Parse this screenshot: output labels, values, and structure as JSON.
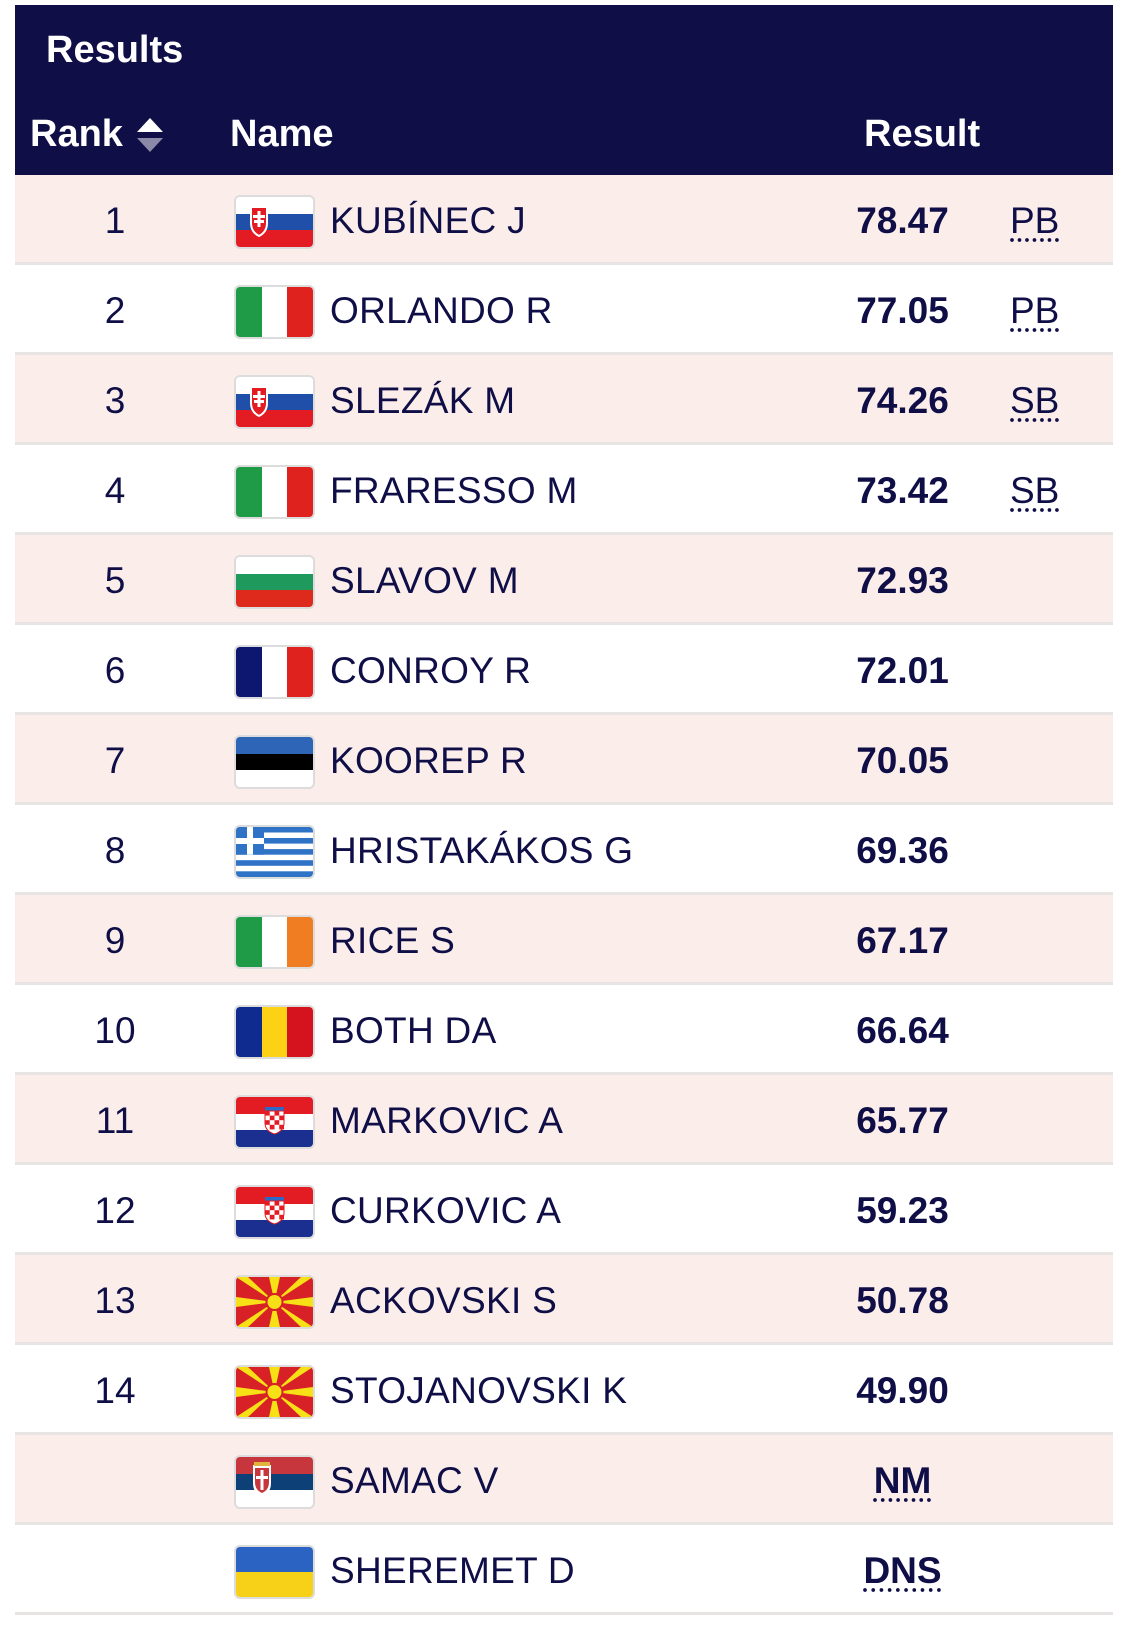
{
  "header": {
    "title": "Results",
    "columns": {
      "rank": "Rank",
      "name": "Name",
      "result": "Result"
    }
  },
  "rows": [
    {
      "rank": "1",
      "flag": "slovakia-flag",
      "name": "KUBÍNEC J",
      "result": "78.47",
      "mark": "PB"
    },
    {
      "rank": "2",
      "flag": "italy-flag",
      "name": "ORLANDO R",
      "result": "77.05",
      "mark": "PB"
    },
    {
      "rank": "3",
      "flag": "slovakia-flag",
      "name": "SLEZÁK M",
      "result": "74.26",
      "mark": "SB"
    },
    {
      "rank": "4",
      "flag": "italy-flag",
      "name": "FRARESSO M",
      "result": "73.42",
      "mark": "SB"
    },
    {
      "rank": "5",
      "flag": "bulgaria-flag",
      "name": "SLAVOV M",
      "result": "72.93",
      "mark": ""
    },
    {
      "rank": "6",
      "flag": "france-flag",
      "name": "CONROY R",
      "result": "72.01",
      "mark": ""
    },
    {
      "rank": "7",
      "flag": "estonia-flag",
      "name": "KOOREP R",
      "result": "70.05",
      "mark": ""
    },
    {
      "rank": "8",
      "flag": "greece-flag",
      "name": "HRISTAKÁKOS G",
      "result": "69.36",
      "mark": ""
    },
    {
      "rank": "9",
      "flag": "ireland-flag",
      "name": "RICE S",
      "result": "67.17",
      "mark": ""
    },
    {
      "rank": "10",
      "flag": "romania-flag",
      "name": "BOTH DA",
      "result": "66.64",
      "mark": ""
    },
    {
      "rank": "11",
      "flag": "croatia-flag",
      "name": "MARKOVIC A",
      "result": "65.77",
      "mark": ""
    },
    {
      "rank": "12",
      "flag": "croatia-flag",
      "name": "CURKOVIC A",
      "result": "59.23",
      "mark": ""
    },
    {
      "rank": "13",
      "flag": "north-macedonia-flag",
      "name": "ACKOVSKI S",
      "result": "50.78",
      "mark": ""
    },
    {
      "rank": "14",
      "flag": "north-macedonia-flag",
      "name": "STOJANOVSKI K",
      "result": "49.90",
      "mark": ""
    },
    {
      "rank": "",
      "flag": "serbia-flag",
      "name": "SAMAC V",
      "result": "NM",
      "mark": ""
    },
    {
      "rank": "",
      "flag": "ukraine-flag",
      "name": "SHEREMET D",
      "result": "DNS",
      "mark": ""
    }
  ],
  "colors": {
    "header_bg": "#0f0e47",
    "row_alt_bg": "#fbeeea",
    "text": "#0f0e47"
  }
}
